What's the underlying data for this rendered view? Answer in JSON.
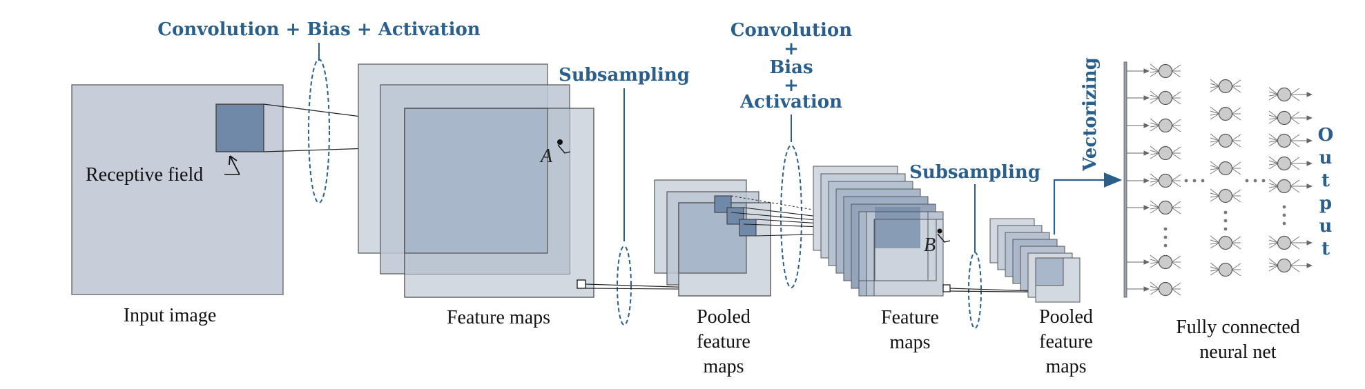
{
  "labels": {
    "conv1": "Convolution + Bias + Activation",
    "conv2_line1": "Convolution",
    "conv2_line2": "+",
    "conv2_line3": "Bias",
    "conv2_line4": "+",
    "conv2_line5": "Activation",
    "subsampling1": "Subsampling",
    "subsampling2": "Subsampling",
    "vectorizing": "Vectorizing",
    "output": "Output",
    "receptive_field": "Receptive field",
    "input_image": "Input image",
    "feature_maps1": "Feature maps",
    "pooled1_line1": "Pooled",
    "pooled1_line2": "feature",
    "pooled1_line3": "maps",
    "feature_maps2_line1": "Feature",
    "feature_maps2_line2": "maps",
    "pooled2_line1": "Pooled",
    "pooled2_line2": "feature",
    "pooled2_line3": "maps",
    "fc_line1": "Fully connected",
    "fc_line2": "neural net",
    "point_a": "A",
    "point_b": "B"
  },
  "colors": {
    "accent": "#2a5f8c",
    "map_light": "#d3d9e1",
    "map_mid": "#a9b7ca",
    "map_dark": "#7189a8",
    "neuron": "#cccccc"
  }
}
